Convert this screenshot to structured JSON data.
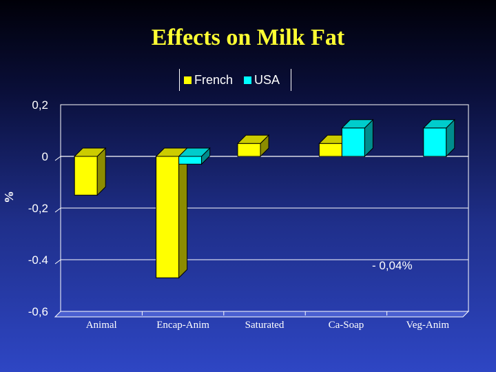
{
  "chart_data": {
    "type": "bar",
    "title": "Effects on Milk Fat",
    "ylabel": "%",
    "categories": [
      "Animal",
      "Encap-Anim",
      "Saturated",
      "Ca-Soap",
      "Veg-Anim"
    ],
    "series": [
      {
        "name": "French",
        "values": [
          -0.15,
          -0.47,
          0.05,
          0.05,
          null
        ],
        "color": "#ffff00"
      },
      {
        "name": "USA",
        "values": [
          null,
          -0.03,
          null,
          0.11,
          0.11
        ],
        "color": "#00ffff"
      }
    ],
    "y_ticks": [
      "0,2",
      "0",
      "-0,2",
      "-0.4",
      "-0,6"
    ],
    "ylim": [
      -0.6,
      0.2
    ],
    "annotation": "- 0,04%",
    "legend_position": "top"
  }
}
